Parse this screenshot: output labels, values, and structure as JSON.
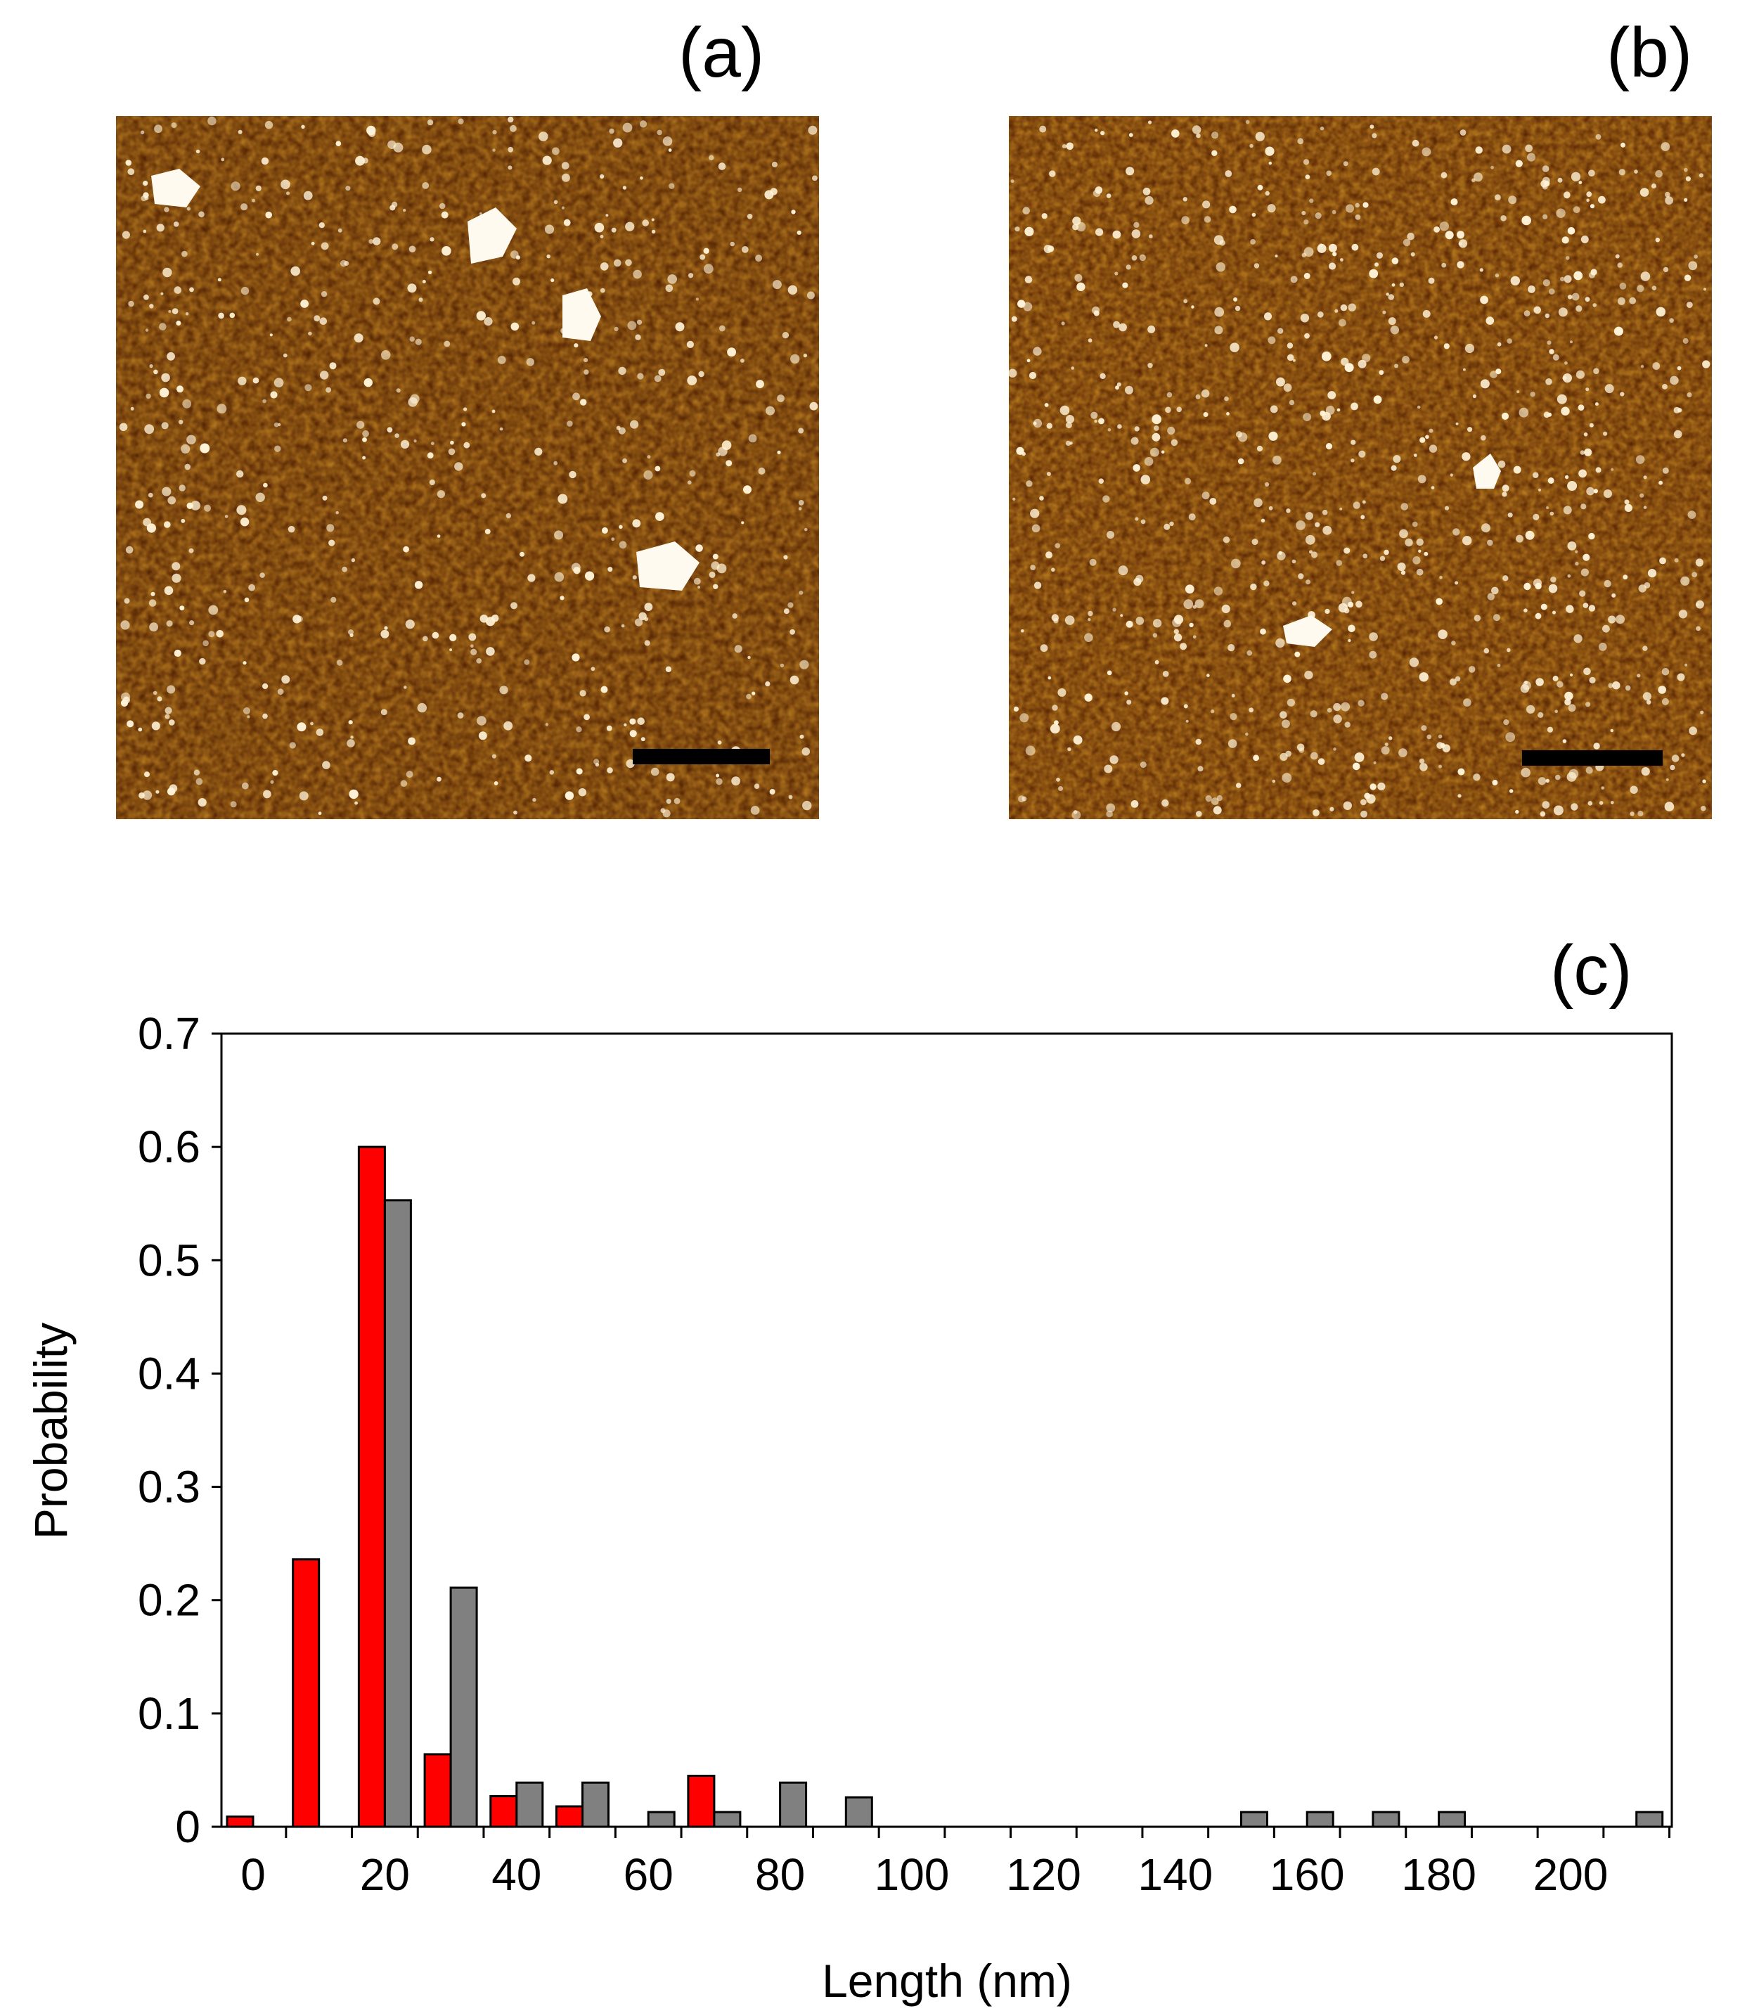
{
  "panels": {
    "a": {
      "label": "(a)"
    },
    "b": {
      "label": "(b)"
    },
    "c": {
      "label": "(c)"
    }
  },
  "colors": {
    "series_1": "#ff0000",
    "series_2": "#808080",
    "afm_dark": "#3a1400",
    "afm_mid": "#a34a00",
    "afm_bright": "#ffffff",
    "scale_bar": "#000000"
  },
  "chart_data": {
    "type": "bar",
    "xlabel": "Length (nm)",
    "ylabel": "Probability",
    "ylim": [
      0,
      0.7
    ],
    "yticks": [
      "0",
      "0.1",
      "0.2",
      "0.3",
      "0.4",
      "0.5",
      "0.6",
      "0.7"
    ],
    "xticks": [
      "0",
      "20",
      "40",
      "60",
      "80",
      "100",
      "120",
      "140",
      "160",
      "180",
      "200"
    ],
    "categories": [
      "0",
      "10",
      "20",
      "30",
      "40",
      "50",
      "60",
      "70",
      "80",
      "90",
      "100",
      "110",
      "120",
      "130",
      "140",
      "150",
      "160",
      "170",
      "180",
      "190",
      "200",
      "210"
    ],
    "grid": false,
    "legend": "none",
    "series": [
      {
        "values": [
          0.009,
          0.236,
          0.6,
          0.064,
          0.027,
          0.018,
          0.0,
          0.045,
          0.0,
          0.0,
          0.0,
          0.0,
          0.0,
          0.0,
          0.0,
          0.0,
          0.0,
          0.0,
          0.0,
          0.0,
          0.0,
          0.0
        ]
      },
      {
        "values": [
          0.0,
          0.0,
          0.553,
          0.211,
          0.039,
          0.039,
          0.013,
          0.013,
          0.039,
          0.026,
          0.0,
          0.0,
          0.0,
          0.0,
          0.0,
          0.013,
          0.013,
          0.013,
          0.013,
          0.0,
          0.0,
          0.013
        ]
      }
    ]
  }
}
